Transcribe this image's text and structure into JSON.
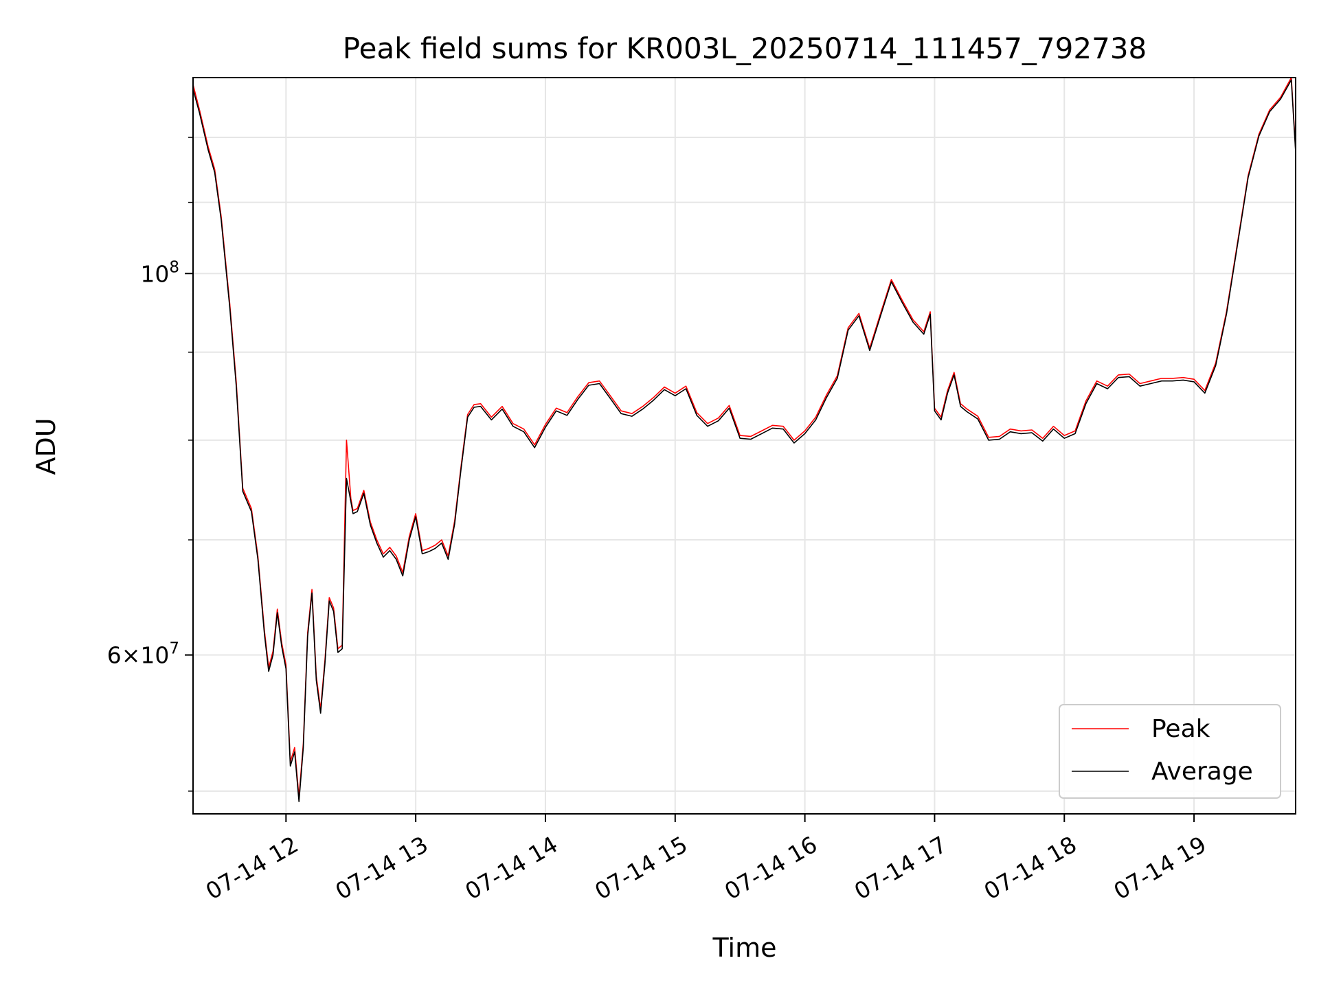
{
  "chart_data": {
    "type": "line",
    "title": "Peak field sums for KR003L_20250714_111457_792738",
    "xlabel": "Time",
    "ylabel": "ADU",
    "yscale": "log",
    "grid": true,
    "legend_position": "lower-right",
    "x_ticks": [
      "07-14 12",
      "07-14 13",
      "07-14 14",
      "07-14 15",
      "07-14 16",
      "07-14 17",
      "07-14 18",
      "07-14 19"
    ],
    "y_ticks": [
      {
        "value": 100000000,
        "base": "10",
        "exp": "8",
        "mult": ""
      },
      {
        "value": 60000000,
        "base": "10",
        "exp": "7",
        "mult": "6"
      }
    ],
    "ylim": [
      48500000,
      130000000
    ],
    "xlim": [
      "2025-07-14 11:17",
      "2025-07-14 19:47"
    ],
    "series": [
      {
        "name": "Peak",
        "color": "#ff0000",
        "x": [
          "11:17",
          "11:20",
          "11:24",
          "11:27",
          "11:30",
          "11:34",
          "11:37",
          "11:40",
          "11:44",
          "11:47",
          "11:50",
          "11:52",
          "11:54",
          "11:56",
          "11:58",
          "12:00",
          "12:02",
          "12:04",
          "12:06",
          "12:08",
          "12:10",
          "12:12",
          "12:14",
          "12:16",
          "12:18",
          "12:20",
          "12:22",
          "12:24",
          "12:26",
          "12:28",
          "12:30",
          "12:31",
          "12:33",
          "12:36",
          "12:39",
          "12:42",
          "12:45",
          "12:48",
          "12:51",
          "12:54",
          "12:57",
          "13:00",
          "13:03",
          "13:06",
          "13:09",
          "13:12",
          "13:15",
          "13:18",
          "13:21",
          "13:24",
          "13:27",
          "13:30",
          "13:35",
          "13:40",
          "13:45",
          "13:50",
          "13:55",
          "14:00",
          "14:05",
          "14:10",
          "14:15",
          "14:20",
          "14:25",
          "14:30",
          "14:35",
          "14:40",
          "14:45",
          "14:50",
          "14:55",
          "15:00",
          "15:05",
          "15:10",
          "15:15",
          "15:20",
          "15:25",
          "15:30",
          "15:35",
          "15:40",
          "15:45",
          "15:50",
          "15:55",
          "16:00",
          "16:05",
          "16:10",
          "16:15",
          "16:20",
          "16:25",
          "16:30",
          "16:35",
          "16:40",
          "16:45",
          "16:50",
          "16:55",
          "16:58",
          "17:00",
          "17:03",
          "17:06",
          "17:09",
          "17:12",
          "17:15",
          "17:20",
          "17:25",
          "17:30",
          "17:35",
          "17:40",
          "17:45",
          "17:50",
          "17:55",
          "18:00",
          "18:05",
          "18:10",
          "18:15",
          "18:20",
          "18:25",
          "18:30",
          "18:35",
          "18:40",
          "18:45",
          "18:50",
          "18:55",
          "19:00",
          "19:05",
          "19:10",
          "19:15",
          "19:20",
          "19:25",
          "19:30",
          "19:35",
          "19:40",
          "19:45",
          "19:47"
        ],
        "values": [
          128800000,
          124500000,
          118500000,
          115000000,
          108000000,
          96000000,
          86500000,
          75000000,
          73000000,
          68500000,
          62000000,
          59000000,
          60300000,
          63800000,
          61000000,
          59200000,
          52000000,
          53000000,
          49600000,
          53300000,
          61800000,
          65500000,
          58300000,
          55800000,
          59600000,
          64800000,
          63900000,
          60500000,
          60800000,
          80000000,
          74000000,
          72800000,
          73000000,
          74800000,
          71700000,
          70000000,
          68700000,
          69300000,
          68500000,
          67000000,
          70300000,
          72500000,
          69000000,
          69200000,
          69500000,
          70000000,
          68500000,
          71800000,
          77300000,
          82800000,
          83900000,
          84000000,
          82500000,
          83700000,
          81800000,
          81200000,
          79500000,
          81700000,
          83500000,
          83000000,
          84800000,
          86400000,
          86600000,
          84900000,
          83200000,
          82900000,
          83700000,
          84700000,
          85900000,
          85200000,
          86000000,
          83000000,
          81800000,
          82400000,
          83800000,
          80500000,
          80400000,
          81000000,
          81600000,
          81500000,
          80000000,
          81000000,
          82500000,
          85000000,
          87200000,
          93000000,
          94800000,
          90500000,
          94800000,
          99200000,
          96500000,
          94000000,
          92500000,
          95000000,
          83500000,
          82500000,
          85500000,
          87600000,
          84000000,
          83400000,
          82600000,
          80300000,
          80400000,
          81200000,
          81000000,
          81100000,
          80200000,
          81500000,
          80500000,
          81000000,
          84300000,
          86600000,
          86000000,
          87300000,
          87400000,
          86300000,
          86600000,
          86900000,
          86900000,
          87000000,
          86800000,
          85500000,
          88700000,
          95000000,
          104000000,
          114000000,
          120500000,
          124500000,
          126600000,
          130000000,
          118000000
        ]
      },
      {
        "name": "Average",
        "color": "#000000",
        "x": [
          "11:17",
          "11:20",
          "11:24",
          "11:27",
          "11:30",
          "11:34",
          "11:37",
          "11:40",
          "11:44",
          "11:47",
          "11:50",
          "11:52",
          "11:54",
          "11:56",
          "11:58",
          "12:00",
          "12:02",
          "12:04",
          "12:06",
          "12:08",
          "12:10",
          "12:12",
          "12:14",
          "12:16",
          "12:18",
          "12:20",
          "12:22",
          "12:24",
          "12:26",
          "12:28",
          "12:30",
          "12:31",
          "12:33",
          "12:36",
          "12:39",
          "12:42",
          "12:45",
          "12:48",
          "12:51",
          "12:54",
          "12:57",
          "13:00",
          "13:03",
          "13:06",
          "13:09",
          "13:12",
          "13:15",
          "13:18",
          "13:21",
          "13:24",
          "13:27",
          "13:30",
          "13:35",
          "13:40",
          "13:45",
          "13:50",
          "13:55",
          "14:00",
          "14:05",
          "14:10",
          "14:15",
          "14:20",
          "14:25",
          "14:30",
          "14:35",
          "14:40",
          "14:45",
          "14:50",
          "14:55",
          "15:00",
          "15:05",
          "15:10",
          "15:15",
          "15:20",
          "15:25",
          "15:30",
          "15:35",
          "15:40",
          "15:45",
          "15:50",
          "15:55",
          "16:00",
          "16:05",
          "16:10",
          "16:15",
          "16:20",
          "16:25",
          "16:30",
          "16:35",
          "16:40",
          "16:45",
          "16:50",
          "16:55",
          "16:58",
          "17:00",
          "17:03",
          "17:06",
          "17:09",
          "17:12",
          "17:15",
          "17:20",
          "17:25",
          "17:30",
          "17:35",
          "17:40",
          "17:45",
          "17:50",
          "17:55",
          "18:00",
          "18:05",
          "18:10",
          "18:15",
          "18:20",
          "18:25",
          "18:30",
          "18:35",
          "18:40",
          "18:45",
          "18:50",
          "18:55",
          "19:00",
          "19:05",
          "19:10",
          "19:15",
          "19:20",
          "19:25",
          "19:30",
          "19:35",
          "19:40",
          "19:45",
          "19:47"
        ],
        "values": [
          128000000,
          124000000,
          118000000,
          114500000,
          107500000,
          95500000,
          86000000,
          74700000,
          72700000,
          68200000,
          61700000,
          58700000,
          60000000,
          63500000,
          60700000,
          58900000,
          51700000,
          52700000,
          49300000,
          53000000,
          61500000,
          65200000,
          58000000,
          55500000,
          59300000,
          64500000,
          63600000,
          60200000,
          60500000,
          76000000,
          73700000,
          72500000,
          72700000,
          74500000,
          71400000,
          69700000,
          68400000,
          69000000,
          68200000,
          66700000,
          70000000,
          72200000,
          68700000,
          68900000,
          69200000,
          69700000,
          68200000,
          71500000,
          77000000,
          82500000,
          83600000,
          83700000,
          82200000,
          83400000,
          81500000,
          80900000,
          79200000,
          81400000,
          83200000,
          82700000,
          84500000,
          86100000,
          86300000,
          84600000,
          82900000,
          82600000,
          83400000,
          84400000,
          85600000,
          84900000,
          85700000,
          82700000,
          81500000,
          82100000,
          83500000,
          80200000,
          80100000,
          80700000,
          81300000,
          81200000,
          79700000,
          80700000,
          82200000,
          84700000,
          86900000,
          92700000,
          94500000,
          90200000,
          94500000,
          98900000,
          96200000,
          93700000,
          92200000,
          94700000,
          83200000,
          82200000,
          85200000,
          87300000,
          83700000,
          83100000,
          82300000,
          80000000,
          80100000,
          80900000,
          80700000,
          80800000,
          79900000,
          81200000,
          80200000,
          80700000,
          84000000,
          86300000,
          85700000,
          87000000,
          87100000,
          86000000,
          86300000,
          86600000,
          86600000,
          86700000,
          86500000,
          85200000,
          88400000,
          94700000,
          103700000,
          113700000,
          120200000,
          124200000,
          126300000,
          129600000,
          117600000
        ]
      }
    ]
  }
}
